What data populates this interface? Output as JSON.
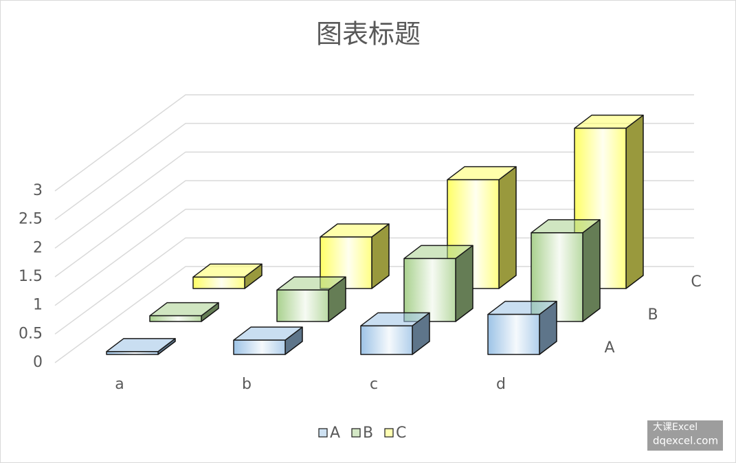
{
  "chart_data": {
    "type": "bar3d",
    "title": "图表标题",
    "categories": [
      "a",
      "b",
      "c",
      "d"
    ],
    "series": [
      {
        "name": "A",
        "color": "#9dc3e6",
        "values": [
          0.05,
          0.25,
          0.5,
          0.7
        ]
      },
      {
        "name": "B",
        "color": "#a9d18e",
        "values": [
          0.1,
          0.55,
          1.1,
          1.55
        ]
      },
      {
        "name": "C",
        "color": "#ffff66",
        "values": [
          0.2,
          0.9,
          1.9,
          2.8
        ]
      }
    ],
    "ylim": [
      0,
      3
    ],
    "yticks": [
      0,
      0.5,
      1,
      1.5,
      2,
      2.5,
      3
    ],
    "grid": true,
    "legend": "bottom",
    "watermark": [
      "大课Excel",
      "dqexcel.com"
    ]
  }
}
